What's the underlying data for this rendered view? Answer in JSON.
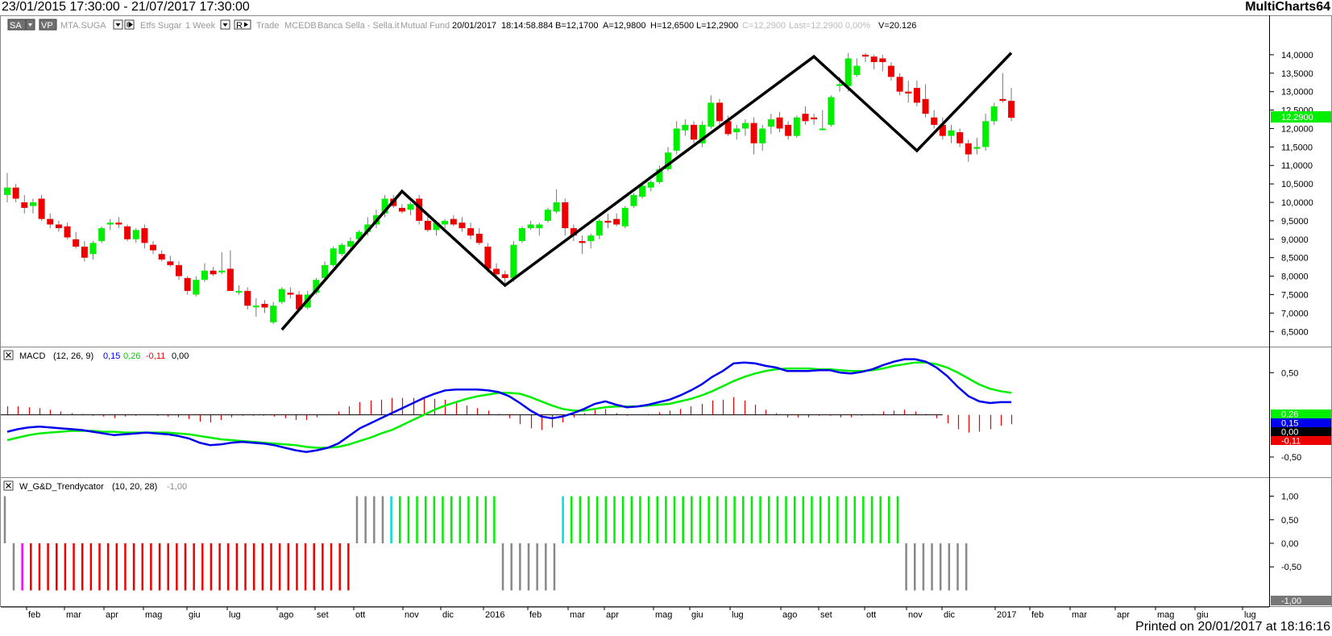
{
  "header": {
    "date_range": "23/01/2015 17:30:00 - 21/07/2017 17:30:00",
    "brand": "MultiCharts64"
  },
  "footer": {
    "printed": "Printed on 20/01/2017 at 18:16:16"
  },
  "status_bar": {
    "btn_sa": "SA",
    "btn_vp": "VP",
    "symbol": "MTA.SUGA",
    "instrument": "Etfs Sugar",
    "resolution": "1 Week",
    "btn_r": "R",
    "source": "Trade",
    "exchange": "MCEDB",
    "broker": "Banca Sella - Sella.it",
    "category": "Mutual Fund",
    "date": "20/01/2017",
    "time": "18:14:58.884",
    "bid": "B=12,1700",
    "ask": "A=12,9800",
    "high": "H=12,6500",
    "low": "L=12,2900",
    "close": "C=12,2900",
    "last": "Last=12,2900",
    "change": "0,00%",
    "volume": "V=20.126"
  },
  "colors": {
    "up": "#00ee00",
    "down": "#ee0000",
    "macd": "#0000ee",
    "signal": "#00ee00",
    "hist": "#ee0000",
    "neutral": "#888888",
    "flip_up": "#00dddd",
    "flip_down": "#ff00ff",
    "zigzag": "#000000"
  },
  "chart_data": [
    {
      "type": "candlestick",
      "title": "MTA.SUGA - Etfs Sugar 1 Week",
      "ylim": [
        6.2,
        14.5
      ],
      "y_ticks": [
        "6,5000",
        "7,0000",
        "7,5000",
        "8,0000",
        "8,5000",
        "9,0000",
        "9,5000",
        "10,0000",
        "10,5000",
        "11,0000",
        "11,5000",
        "12,0000",
        "12,5000",
        "13,0000",
        "13,5000",
        "14,0000"
      ],
      "last_price_label": "12,2900",
      "last_price": 12.29,
      "x_ticks": [
        "feb",
        "mar",
        "apr",
        "mag",
        "giu",
        "lug",
        "ago",
        "set",
        "ott",
        "nov",
        "dic",
        "2016",
        "feb",
        "mar",
        "apr",
        "mag",
        "giu",
        "lug",
        "ago",
        "set",
        "ott",
        "nov",
        "dic",
        "2017",
        "feb",
        "mar",
        "apr",
        "mag",
        "giu",
        "lug"
      ],
      "candles": [
        [
          10.2,
          10.8,
          10.0,
          10.4
        ],
        [
          10.4,
          10.5,
          10.0,
          10.1
        ],
        [
          10.0,
          10.2,
          9.7,
          9.85
        ],
        [
          9.9,
          10.1,
          9.7,
          10.0
        ],
        [
          10.1,
          10.2,
          9.5,
          9.55
        ],
        [
          9.55,
          9.7,
          9.3,
          9.4
        ],
        [
          9.4,
          9.5,
          9.2,
          9.3
        ],
        [
          9.35,
          9.45,
          9.0,
          9.05
        ],
        [
          9.0,
          9.2,
          8.75,
          8.8
        ],
        [
          8.8,
          8.95,
          8.4,
          8.5
        ],
        [
          8.6,
          8.95,
          8.45,
          8.9
        ],
        [
          8.95,
          9.35,
          8.9,
          9.3
        ],
        [
          9.4,
          9.55,
          9.25,
          9.45
        ],
        [
          9.45,
          9.6,
          9.3,
          9.4
        ],
        [
          9.35,
          9.4,
          8.95,
          9.0
        ],
        [
          9.0,
          9.3,
          8.9,
          9.25
        ],
        [
          9.3,
          9.4,
          8.75,
          8.9
        ],
        [
          8.85,
          8.95,
          8.6,
          8.7
        ],
        [
          8.6,
          8.7,
          8.4,
          8.45
        ],
        [
          8.4,
          8.55,
          8.25,
          8.3
        ],
        [
          8.3,
          8.4,
          7.9,
          8.0
        ],
        [
          7.95,
          8.0,
          7.5,
          7.6
        ],
        [
          7.5,
          8.0,
          7.45,
          7.9
        ],
        [
          7.9,
          8.35,
          7.85,
          8.15
        ],
        [
          8.15,
          8.25,
          8.0,
          8.05
        ],
        [
          8.1,
          8.65,
          8.05,
          8.15
        ],
        [
          8.2,
          8.7,
          7.6,
          7.6
        ],
        [
          7.6,
          7.75,
          7.5,
          7.6
        ],
        [
          7.6,
          7.7,
          7.1,
          7.2
        ],
        [
          7.2,
          7.4,
          6.9,
          7.2
        ],
        [
          7.25,
          7.35,
          7.0,
          7.15
        ],
        [
          6.75,
          7.3,
          6.7,
          7.2
        ],
        [
          7.3,
          7.7,
          7.25,
          7.65
        ],
        [
          7.55,
          7.7,
          7.4,
          7.5
        ],
        [
          7.5,
          7.6,
          7.05,
          7.1
        ],
        [
          7.15,
          7.6,
          7.1,
          7.5
        ],
        [
          7.55,
          7.95,
          7.5,
          7.9
        ],
        [
          7.95,
          8.4,
          7.9,
          8.3
        ],
        [
          8.3,
          8.8,
          8.25,
          8.75
        ],
        [
          8.6,
          8.9,
          8.55,
          8.85
        ],
        [
          8.8,
          9.05,
          8.7,
          8.95
        ],
        [
          9.0,
          9.25,
          8.95,
          9.2
        ],
        [
          9.2,
          9.6,
          9.1,
          9.4
        ],
        [
          9.4,
          9.8,
          9.3,
          9.65
        ],
        [
          9.7,
          10.2,
          9.6,
          10.1
        ],
        [
          10.1,
          10.2,
          9.85,
          9.9
        ],
        [
          9.85,
          9.95,
          9.7,
          9.75
        ],
        [
          9.8,
          10.0,
          9.65,
          9.95
        ],
        [
          10.1,
          10.2,
          9.4,
          9.5
        ],
        [
          9.5,
          9.7,
          9.2,
          9.25
        ],
        [
          9.25,
          9.5,
          9.1,
          9.45
        ],
        [
          9.4,
          9.55,
          9.3,
          9.5
        ],
        [
          9.55,
          9.65,
          9.35,
          9.4
        ],
        [
          9.45,
          9.6,
          9.2,
          9.3
        ],
        [
          9.3,
          9.45,
          9.0,
          9.1
        ],
        [
          9.15,
          9.3,
          8.85,
          8.9
        ],
        [
          8.8,
          8.9,
          8.1,
          8.2
        ],
        [
          8.2,
          8.35,
          7.95,
          8.05
        ],
        [
          8.05,
          8.15,
          7.8,
          7.95
        ],
        [
          7.95,
          8.95,
          7.85,
          8.85
        ],
        [
          8.95,
          9.35,
          8.9,
          9.3
        ],
        [
          9.3,
          9.5,
          9.25,
          9.4
        ],
        [
          9.3,
          9.45,
          9.1,
          9.4
        ],
        [
          9.5,
          9.85,
          9.45,
          9.8
        ],
        [
          9.75,
          10.35,
          9.7,
          10.0
        ],
        [
          10.0,
          10.1,
          9.1,
          9.3
        ],
        [
          9.3,
          9.4,
          8.95,
          9.1
        ],
        [
          8.95,
          9.1,
          8.6,
          8.9
        ],
        [
          8.95,
          9.15,
          8.75,
          9.1
        ],
        [
          9.1,
          9.55,
          9.0,
          9.5
        ],
        [
          9.5,
          9.7,
          9.3,
          9.45
        ],
        [
          9.55,
          9.7,
          9.35,
          9.4
        ],
        [
          9.35,
          9.9,
          9.3,
          9.85
        ],
        [
          9.9,
          10.25,
          9.85,
          10.2
        ],
        [
          10.15,
          10.5,
          10.1,
          10.45
        ],
        [
          10.4,
          10.6,
          10.3,
          10.55
        ],
        [
          10.55,
          11.0,
          10.5,
          10.9
        ],
        [
          10.9,
          11.5,
          10.85,
          11.35
        ],
        [
          11.4,
          12.2,
          11.3,
          12.0
        ],
        [
          11.95,
          12.25,
          11.8,
          12.1
        ],
        [
          12.1,
          12.2,
          11.6,
          11.7
        ],
        [
          11.6,
          12.2,
          11.5,
          12.1
        ],
        [
          12.05,
          12.9,
          12.0,
          12.7
        ],
        [
          12.7,
          12.8,
          12.1,
          12.2
        ],
        [
          12.2,
          12.35,
          11.8,
          11.85
        ],
        [
          11.9,
          12.1,
          11.7,
          12.0
        ],
        [
          12.0,
          12.25,
          11.8,
          12.15
        ],
        [
          12.15,
          12.3,
          11.3,
          11.6
        ],
        [
          11.6,
          12.1,
          11.4,
          12.0
        ],
        [
          12.05,
          12.4,
          11.85,
          12.25
        ],
        [
          12.3,
          12.45,
          11.9,
          12.0
        ],
        [
          12.1,
          12.2,
          11.7,
          11.8
        ],
        [
          11.8,
          12.35,
          11.75,
          12.3
        ],
        [
          12.4,
          12.6,
          12.1,
          12.2
        ],
        [
          12.3,
          12.4,
          12.1,
          12.25
        ],
        [
          12.0,
          12.5,
          11.95,
          12.0
        ],
        [
          12.1,
          12.9,
          12.05,
          12.85
        ],
        [
          13.2,
          13.4,
          13.0,
          13.2
        ],
        [
          13.15,
          14.05,
          13.0,
          13.9
        ],
        [
          13.45,
          13.9,
          13.4,
          13.7
        ],
        [
          14.0,
          14.05,
          13.8,
          13.95
        ],
        [
          13.95,
          14.0,
          13.6,
          13.8
        ],
        [
          13.9,
          14.0,
          13.55,
          13.8
        ],
        [
          13.7,
          13.8,
          13.3,
          13.4
        ],
        [
          13.4,
          13.5,
          12.9,
          13.0
        ],
        [
          13.0,
          13.3,
          12.7,
          12.95
        ],
        [
          13.1,
          13.3,
          12.6,
          12.7
        ],
        [
          12.8,
          13.2,
          12.3,
          12.4
        ],
        [
          12.3,
          12.5,
          12.0,
          12.1
        ],
        [
          12.1,
          12.3,
          11.7,
          11.8
        ],
        [
          11.8,
          12.1,
          11.6,
          11.95
        ],
        [
          11.9,
          12.0,
          11.5,
          11.6
        ],
        [
          11.6,
          11.7,
          11.1,
          11.3
        ],
        [
          11.45,
          11.75,
          11.3,
          11.5
        ],
        [
          11.5,
          12.4,
          11.4,
          12.2
        ],
        [
          12.2,
          12.7,
          12.1,
          12.6
        ],
        [
          12.8,
          13.5,
          12.7,
          12.75
        ],
        [
          12.75,
          13.1,
          12.2,
          12.29
        ]
      ],
      "zigzag_points": [
        [
          32,
          6.55
        ],
        [
          46,
          10.3
        ],
        [
          58,
          7.75
        ],
        [
          94,
          13.95
        ],
        [
          106,
          11.4
        ],
        [
          117,
          14.05
        ]
      ]
    },
    {
      "type": "line",
      "indicator": "MACD",
      "params": "(12, 26, 9)",
      "values": [
        "0,15",
        "0,26",
        "-0,11",
        "0,00"
      ],
      "ylim": [
        -0.72,
        0.78
      ],
      "y_ticks": [
        "0,50",
        "-0,50"
      ],
      "right_labels": [
        "0,26",
        "0,15",
        "0,00",
        "-0,11"
      ],
      "series": [
        {
          "key": "macd",
          "values": [
            -0.2,
            -0.17,
            -0.15,
            -0.14,
            -0.15,
            -0.16,
            -0.17,
            -0.18,
            -0.2,
            -0.22,
            -0.24,
            -0.23,
            -0.22,
            -0.21,
            -0.22,
            -0.23,
            -0.25,
            -0.28,
            -0.33,
            -0.36,
            -0.35,
            -0.33,
            -0.32,
            -0.33,
            -0.34,
            -0.36,
            -0.39,
            -0.42,
            -0.44,
            -0.42,
            -0.39,
            -0.34,
            -0.25,
            -0.16,
            -0.1,
            -0.04,
            0.02,
            0.08,
            0.14,
            0.2,
            0.25,
            0.29,
            0.3,
            0.3,
            0.3,
            0.29,
            0.27,
            0.22,
            0.14,
            0.05,
            -0.02,
            -0.04,
            -0.02,
            0.02,
            0.07,
            0.13,
            0.16,
            0.12,
            0.09,
            0.1,
            0.12,
            0.15,
            0.18,
            0.23,
            0.29,
            0.36,
            0.45,
            0.52,
            0.61,
            0.62,
            0.61,
            0.58,
            0.56,
            0.52,
            0.52,
            0.52,
            0.53,
            0.53,
            0.5,
            0.49,
            0.51,
            0.54,
            0.59,
            0.63,
            0.66,
            0.66,
            0.63,
            0.56,
            0.46,
            0.33,
            0.22,
            0.16,
            0.14,
            0.15,
            0.15
          ]
        },
        {
          "key": "signal",
          "values": [
            -0.3,
            -0.27,
            -0.24,
            -0.22,
            -0.21,
            -0.2,
            -0.19,
            -0.19,
            -0.19,
            -0.2,
            -0.2,
            -0.21,
            -0.21,
            -0.21,
            -0.21,
            -0.21,
            -0.22,
            -0.23,
            -0.25,
            -0.27,
            -0.29,
            -0.3,
            -0.31,
            -0.32,
            -0.33,
            -0.34,
            -0.35,
            -0.36,
            -0.38,
            -0.39,
            -0.39,
            -0.38,
            -0.35,
            -0.31,
            -0.27,
            -0.22,
            -0.18,
            -0.12,
            -0.06,
            0.0,
            0.06,
            0.11,
            0.15,
            0.19,
            0.22,
            0.24,
            0.26,
            0.26,
            0.25,
            0.21,
            0.16,
            0.11,
            0.07,
            0.05,
            0.05,
            0.07,
            0.09,
            0.1,
            0.1,
            0.1,
            0.11,
            0.12,
            0.13,
            0.16,
            0.19,
            0.23,
            0.28,
            0.34,
            0.4,
            0.45,
            0.49,
            0.52,
            0.54,
            0.55,
            0.55,
            0.55,
            0.54,
            0.54,
            0.53,
            0.52,
            0.52,
            0.53,
            0.55,
            0.58,
            0.6,
            0.62,
            0.62,
            0.6,
            0.56,
            0.5,
            0.43,
            0.36,
            0.31,
            0.28,
            0.26
          ]
        },
        {
          "key": "hist",
          "values": [
            0.1,
            0.1,
            0.09,
            0.08,
            0.06,
            0.04,
            0.02,
            0.01,
            -0.01,
            -0.02,
            -0.04,
            -0.02,
            -0.01,
            0.0,
            -0.01,
            -0.02,
            -0.03,
            -0.05,
            -0.08,
            -0.09,
            -0.06,
            -0.03,
            -0.01,
            -0.01,
            -0.01,
            -0.02,
            -0.04,
            -0.06,
            -0.06,
            -0.03,
            0.0,
            0.04,
            0.1,
            0.15,
            0.17,
            0.18,
            0.2,
            0.2,
            0.2,
            0.2,
            0.19,
            0.18,
            0.15,
            0.11,
            0.08,
            0.05,
            0.01,
            -0.04,
            -0.11,
            -0.16,
            -0.18,
            -0.15,
            -0.09,
            -0.03,
            0.02,
            0.06,
            0.07,
            0.02,
            -0.01,
            0.0,
            0.01,
            0.03,
            0.05,
            0.07,
            0.1,
            0.13,
            0.17,
            0.18,
            0.21,
            0.17,
            0.12,
            0.06,
            0.02,
            -0.03,
            -0.03,
            -0.03,
            -0.01,
            -0.01,
            -0.03,
            -0.03,
            -0.01,
            0.01,
            0.04,
            0.05,
            0.06,
            0.04,
            0.01,
            -0.04,
            -0.1,
            -0.17,
            -0.21,
            -0.2,
            -0.17,
            -0.13,
            -0.11
          ]
        }
      ]
    },
    {
      "type": "bar",
      "indicator": "W_G&D_Trendycator",
      "params": "(10, 20, 28)",
      "value": "-1,00",
      "ylim": [
        -1.3,
        1.3
      ],
      "y_ticks": [
        "1,00",
        "0,50",
        "0,00",
        "-0,50"
      ],
      "right_label": "-1,00",
      "bars": [
        {
          "x": -1,
          "v": 1,
          "c": "neutral"
        },
        {
          "x": 0,
          "v": -1,
          "c": "neutral"
        },
        {
          "x": 1,
          "v": -1,
          "c": "flip_down"
        },
        {
          "x": 2,
          "to": 39,
          "v": -1,
          "c": "down"
        },
        {
          "x": 40,
          "to": 43,
          "v": 1,
          "c": "neutral"
        },
        {
          "x": 44,
          "v": 1,
          "c": "flip_up"
        },
        {
          "x": 45,
          "to": 56,
          "v": 1,
          "c": "up"
        },
        {
          "x": 57,
          "to": 63,
          "v": -1,
          "c": "neutral"
        },
        {
          "x": 64,
          "v": 1,
          "c": "flip_up"
        },
        {
          "x": 65,
          "to": 103,
          "v": 1,
          "c": "up"
        },
        {
          "x": 104,
          "to": 111,
          "v": -1,
          "c": "neutral"
        }
      ]
    }
  ]
}
